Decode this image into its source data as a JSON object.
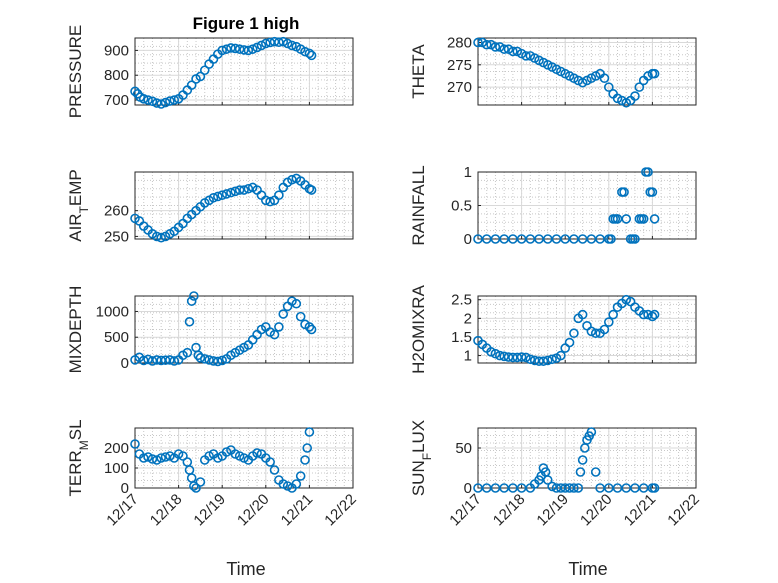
{
  "figure": {
    "title": "Figure 1 high"
  },
  "colors": {
    "marker": "#0072BD",
    "axis": "#262626"
  },
  "x_axis": {
    "label": "Time",
    "ticks": [
      "12/17",
      "12/18",
      "12/19",
      "12/20",
      "12/21",
      "12/22"
    ]
  },
  "chart_data": [
    {
      "type": "scatter",
      "name": "PRESSURE",
      "title": "Figure 1 high",
      "ylabel": "PRESSURE",
      "xlim": [
        0,
        5
      ],
      "ylim": [
        680,
        950
      ],
      "yticks": [
        700,
        800,
        900
      ],
      "grid": true,
      "x": [
        0.0,
        0.06,
        0.12,
        0.2,
        0.3,
        0.4,
        0.5,
        0.6,
        0.7,
        0.8,
        0.9,
        1.0,
        1.1,
        1.2,
        1.3,
        1.4,
        1.5,
        1.6,
        1.7,
        1.8,
        1.9,
        2.0,
        2.1,
        2.2,
        2.3,
        2.4,
        2.5,
        2.6,
        2.7,
        2.8,
        2.9,
        3.0,
        3.1,
        3.2,
        3.3,
        3.4,
        3.5,
        3.6,
        3.7,
        3.8,
        3.9,
        4.0,
        4.05
      ],
      "y": [
        735,
        725,
        712,
        705,
        700,
        695,
        688,
        684,
        690,
        696,
        700,
        705,
        720,
        740,
        760,
        785,
        795,
        820,
        845,
        865,
        885,
        900,
        905,
        910,
        908,
        905,
        902,
        900,
        905,
        912,
        920,
        928,
        932,
        935,
        933,
        935,
        928,
        920,
        915,
        905,
        895,
        888,
        880
      ]
    },
    {
      "type": "scatter",
      "name": "THETA",
      "ylabel": "THETA",
      "xlim": [
        0,
        5
      ],
      "ylim": [
        266,
        281
      ],
      "yticks": [
        270,
        275,
        280
      ],
      "grid": true,
      "x": [
        0.0,
        0.1,
        0.2,
        0.3,
        0.4,
        0.5,
        0.6,
        0.7,
        0.8,
        0.9,
        1.0,
        1.1,
        1.2,
        1.3,
        1.4,
        1.5,
        1.6,
        1.7,
        1.8,
        1.9,
        2.0,
        2.1,
        2.2,
        2.3,
        2.4,
        2.5,
        2.6,
        2.7,
        2.8,
        2.9,
        3.0,
        3.1,
        3.2,
        3.3,
        3.4,
        3.5,
        3.6,
        3.7,
        3.8,
        3.9,
        4.0,
        4.05
      ],
      "y": [
        280,
        280,
        279.5,
        279.5,
        279,
        279,
        278.5,
        278.5,
        278,
        278,
        277.5,
        277,
        277,
        276.5,
        276,
        275.5,
        275,
        274.5,
        274,
        273.5,
        273,
        272.5,
        272,
        271.5,
        271,
        271.5,
        272,
        272.5,
        273,
        272,
        270,
        268.5,
        267.5,
        267,
        266.5,
        267,
        268,
        270,
        271.5,
        272.5,
        273,
        273
      ]
    },
    {
      "type": "scatter",
      "name": "AIR_TEMP",
      "ylabel": "AIR_TEMP",
      "xlim": [
        0,
        5
      ],
      "ylim": [
        249,
        275
      ],
      "yticks": [
        250,
        260
      ],
      "grid": true,
      "x": [
        0.0,
        0.1,
        0.2,
        0.3,
        0.4,
        0.5,
        0.6,
        0.7,
        0.8,
        0.9,
        1.0,
        1.1,
        1.2,
        1.3,
        1.4,
        1.5,
        1.6,
        1.7,
        1.8,
        1.9,
        2.0,
        2.1,
        2.2,
        2.3,
        2.4,
        2.5,
        2.6,
        2.7,
        2.8,
        2.9,
        3.0,
        3.1,
        3.2,
        3.3,
        3.4,
        3.5,
        3.6,
        3.7,
        3.8,
        3.9,
        4.0,
        4.05
      ],
      "y": [
        257,
        256,
        254,
        252.5,
        251,
        250,
        249.5,
        250,
        251,
        252,
        253.5,
        255,
        257,
        258.5,
        260,
        261.5,
        263,
        264,
        265,
        265.5,
        266,
        266.5,
        267,
        267.5,
        268,
        268,
        268.5,
        269,
        268,
        266,
        264,
        263.5,
        264,
        266,
        269,
        271,
        272,
        272.5,
        271.5,
        270,
        268.5,
        268
      ]
    },
    {
      "type": "scatter",
      "name": "RAINFALL",
      "ylabel": "RAINFALL",
      "xlim": [
        0,
        5
      ],
      "ylim": [
        0,
        1
      ],
      "yticks": [
        0,
        0.5,
        1
      ],
      "grid": true,
      "x": [
        0.0,
        0.2,
        0.4,
        0.6,
        0.8,
        1.0,
        1.2,
        1.4,
        1.6,
        1.8,
        2.0,
        2.2,
        2.4,
        2.6,
        2.8,
        3.0,
        3.05,
        3.1,
        3.15,
        3.2,
        3.3,
        3.35,
        3.4,
        3.5,
        3.55,
        3.6,
        3.7,
        3.75,
        3.8,
        3.85,
        3.9,
        3.95,
        4.0,
        4.05
      ],
      "y": [
        0,
        0,
        0,
        0,
        0,
        0,
        0,
        0,
        0,
        0,
        0,
        0,
        0,
        0,
        0,
        0,
        0,
        0.3,
        0.3,
        0.3,
        0.7,
        0.7,
        0.3,
        0,
        0,
        0,
        0.3,
        0.3,
        0.3,
        1,
        1,
        0.7,
        0.7,
        0.3
      ]
    },
    {
      "type": "scatter",
      "name": "MIXDEPTH",
      "ylabel": "MIXDEPTH",
      "xlim": [
        0,
        5
      ],
      "ylim": [
        0,
        1300
      ],
      "yticks": [
        0,
        500,
        1000
      ],
      "grid": true,
      "x": [
        0.0,
        0.1,
        0.2,
        0.3,
        0.4,
        0.5,
        0.6,
        0.7,
        0.8,
        0.9,
        1.0,
        1.1,
        1.2,
        1.25,
        1.3,
        1.35,
        1.4,
        1.45,
        1.5,
        1.6,
        1.7,
        1.8,
        1.9,
        2.0,
        2.1,
        2.2,
        2.3,
        2.4,
        2.5,
        2.6,
        2.7,
        2.8,
        2.9,
        3.0,
        3.1,
        3.2,
        3.3,
        3.4,
        3.5,
        3.6,
        3.7,
        3.8,
        3.9,
        4.0,
        4.05
      ],
      "y": [
        60,
        110,
        50,
        70,
        40,
        60,
        50,
        55,
        60,
        40,
        60,
        150,
        200,
        800,
        1200,
        1300,
        300,
        150,
        100,
        80,
        60,
        40,
        30,
        50,
        80,
        150,
        200,
        250,
        300,
        350,
        450,
        550,
        650,
        700,
        600,
        550,
        700,
        950,
        1100,
        1200,
        1150,
        900,
        750,
        700,
        650
      ]
    },
    {
      "type": "scatter",
      "name": "H2OMIXRA",
      "ylabel": "H2OMIXRA",
      "xlim": [
        0,
        5
      ],
      "ylim": [
        0.8,
        2.6
      ],
      "yticks": [
        1,
        1.5,
        2,
        2.5
      ],
      "grid": true,
      "x": [
        0.0,
        0.1,
        0.2,
        0.3,
        0.4,
        0.5,
        0.6,
        0.7,
        0.8,
        0.9,
        1.0,
        1.1,
        1.2,
        1.3,
        1.4,
        1.5,
        1.6,
        1.7,
        1.8,
        1.9,
        2.0,
        2.1,
        2.2,
        2.3,
        2.4,
        2.5,
        2.6,
        2.7,
        2.8,
        2.9,
        3.0,
        3.1,
        3.2,
        3.3,
        3.4,
        3.5,
        3.6,
        3.7,
        3.8,
        3.9,
        4.0,
        4.05
      ],
      "y": [
        1.4,
        1.3,
        1.2,
        1.1,
        1.05,
        1.0,
        0.98,
        0.96,
        0.95,
        0.95,
        0.96,
        0.95,
        0.9,
        0.87,
        0.85,
        0.85,
        0.87,
        0.9,
        0.93,
        1.0,
        1.2,
        1.35,
        1.6,
        2.0,
        2.1,
        1.8,
        1.65,
        1.6,
        1.6,
        1.7,
        1.9,
        2.1,
        2.3,
        2.4,
        2.5,
        2.45,
        2.3,
        2.2,
        2.1,
        2.1,
        2.05,
        2.1
      ]
    },
    {
      "type": "scatter",
      "name": "TERR_MSL",
      "ylabel": "TERR_MSL",
      "xlim": [
        0,
        5
      ],
      "ylim": [
        0,
        300
      ],
      "yticks": [
        0,
        100,
        200
      ],
      "grid": true,
      "x": [
        0.0,
        0.1,
        0.2,
        0.3,
        0.4,
        0.5,
        0.6,
        0.7,
        0.8,
        0.9,
        1.0,
        1.1,
        1.2,
        1.25,
        1.3,
        1.35,
        1.4,
        1.5,
        1.6,
        1.7,
        1.8,
        1.9,
        2.0,
        2.1,
        2.2,
        2.3,
        2.4,
        2.5,
        2.6,
        2.7,
        2.8,
        2.9,
        3.0,
        3.1,
        3.2,
        3.3,
        3.4,
        3.5,
        3.6,
        3.7,
        3.8,
        3.9,
        3.95,
        4.0
      ],
      "y": [
        220,
        170,
        150,
        155,
        145,
        140,
        150,
        155,
        160,
        150,
        170,
        160,
        130,
        90,
        50,
        10,
        0,
        30,
        140,
        160,
        170,
        150,
        160,
        180,
        190,
        170,
        160,
        150,
        140,
        160,
        175,
        170,
        150,
        130,
        90,
        40,
        20,
        10,
        0,
        20,
        60,
        140,
        200,
        280
      ]
    },
    {
      "type": "scatter",
      "name": "SUN_FLUX",
      "ylabel": "SUN_FLUX",
      "xlim": [
        0,
        5
      ],
      "ylim": [
        0,
        75
      ],
      "yticks": [
        0,
        50
      ],
      "grid": true,
      "x": [
        0.0,
        0.2,
        0.4,
        0.6,
        0.8,
        1.0,
        1.2,
        1.3,
        1.4,
        1.45,
        1.5,
        1.55,
        1.6,
        1.7,
        1.8,
        1.9,
        2.0,
        2.1,
        2.2,
        2.3,
        2.35,
        2.4,
        2.45,
        2.5,
        2.55,
        2.6,
        2.7,
        2.8,
        3.0,
        3.2,
        3.4,
        3.6,
        3.8,
        4.0,
        4.05
      ],
      "y": [
        0,
        0,
        0,
        0,
        0,
        0,
        0,
        5,
        10,
        15,
        25,
        20,
        10,
        2,
        0,
        0,
        0,
        0,
        0,
        0,
        20,
        35,
        50,
        60,
        65,
        70,
        20,
        0,
        0,
        0,
        0,
        0,
        0,
        0,
        0
      ]
    }
  ]
}
